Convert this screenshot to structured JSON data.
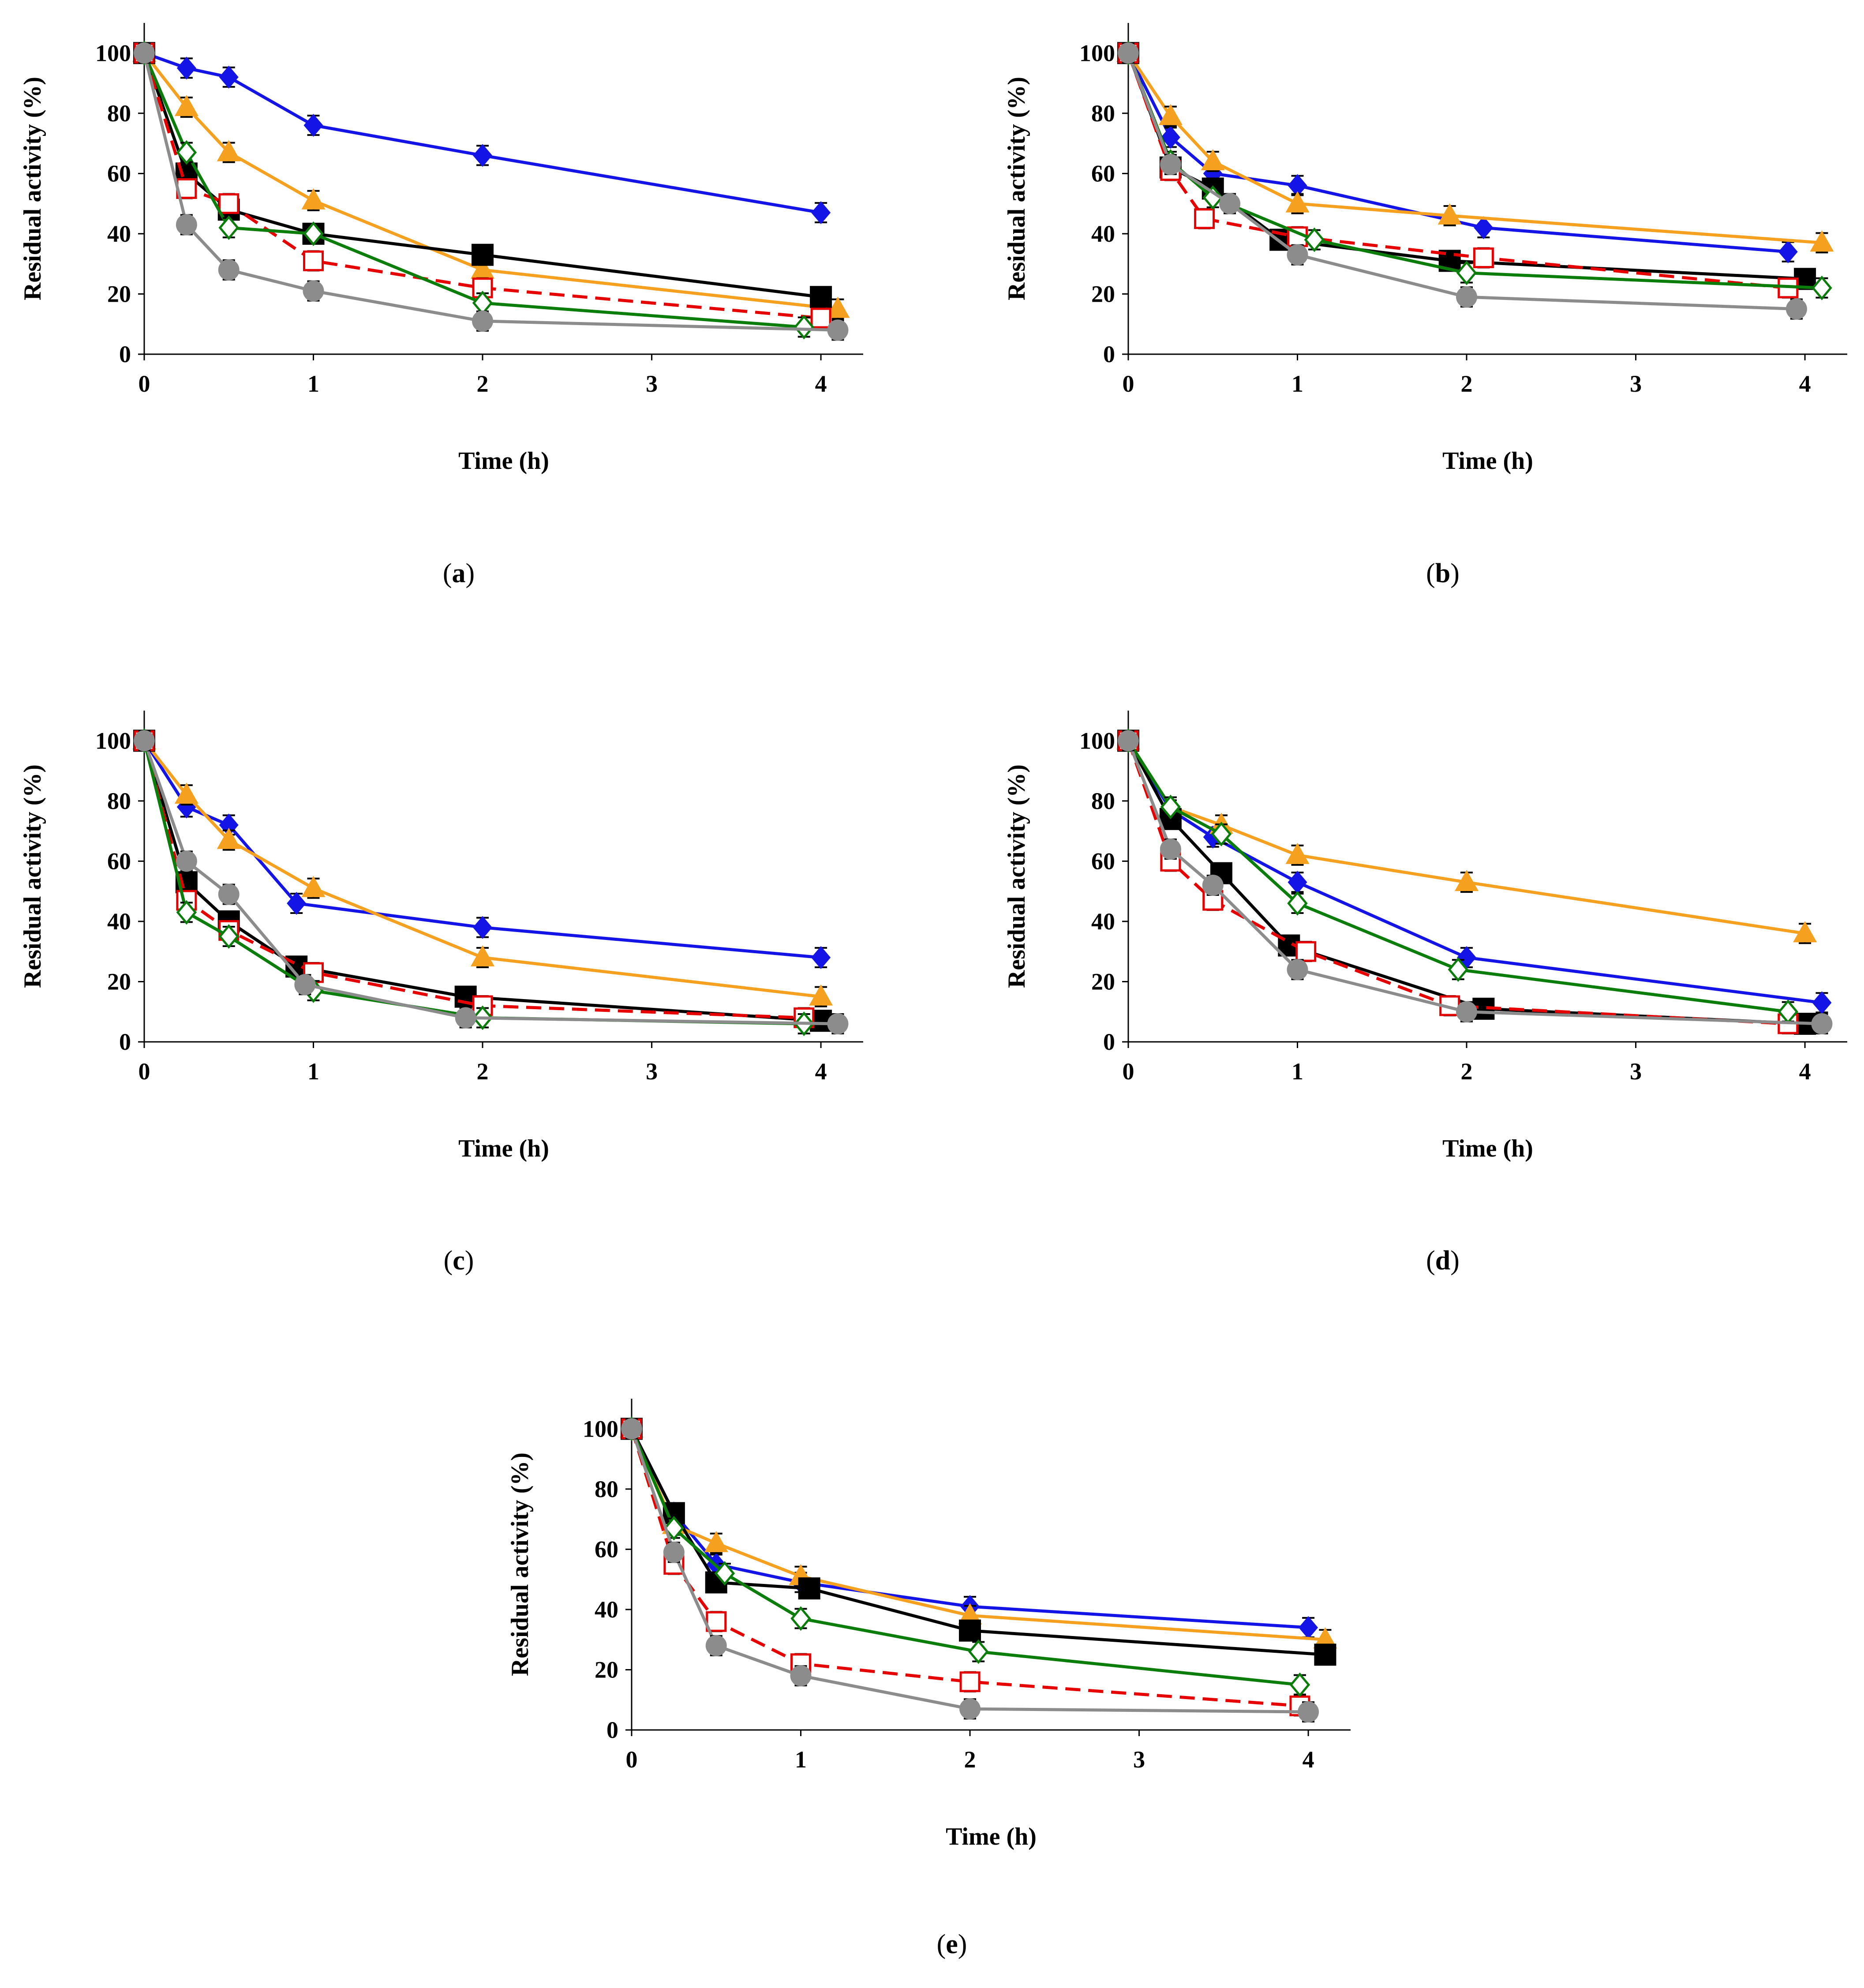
{
  "figure": {
    "caption_open": "(",
    "caption_close": ")"
  },
  "colors": {
    "blue": "#1414e6",
    "orange": "#f5a01e",
    "black": "#000000",
    "red": "#e60000",
    "green": "#0a7d0a",
    "gray": "#8c8c8c"
  },
  "chart_data": [
    {
      "panel": "a",
      "type": "line",
      "xlabel": "Time (h)",
      "ylabel": "Residual activity (%)",
      "xlim": [
        0,
        4.25
      ],
      "ylim": [
        0,
        110
      ],
      "xticks": [
        0,
        1,
        2,
        3,
        4
      ],
      "yticks": [
        0,
        20,
        40,
        60,
        80,
        100
      ],
      "series": [
        {
          "name": "blue-diamond",
          "color": "blue",
          "marker": "diamond-filled",
          "dash": false,
          "x": [
            0,
            0.25,
            0.5,
            1,
            2,
            4
          ],
          "y": [
            100,
            95,
            92,
            76,
            66,
            47
          ]
        },
        {
          "name": "orange-triangle",
          "color": "orange",
          "marker": "triangle",
          "dash": false,
          "x": [
            0,
            0.25,
            0.5,
            1,
            2,
            4.1
          ],
          "y": [
            100,
            82,
            67,
            51,
            28,
            15
          ]
        },
        {
          "name": "black-square",
          "color": "black",
          "marker": "square-filled",
          "dash": false,
          "x": [
            0,
            0.25,
            0.5,
            1,
            2,
            4
          ],
          "y": [
            100,
            60,
            48,
            40,
            33,
            19
          ]
        },
        {
          "name": "red-open-square",
          "color": "red",
          "marker": "square-open",
          "dash": true,
          "x": [
            0,
            0.25,
            0.5,
            1,
            2,
            4
          ],
          "y": [
            100,
            55,
            50,
            31,
            22,
            12
          ]
        },
        {
          "name": "green-open-diamond",
          "color": "green",
          "marker": "diamond-open",
          "dash": false,
          "x": [
            0,
            0.25,
            0.5,
            1,
            2,
            3.9
          ],
          "y": [
            100,
            67,
            42,
            40,
            17,
            9
          ]
        },
        {
          "name": "gray-circle",
          "color": "gray",
          "marker": "circle",
          "dash": false,
          "x": [
            0,
            0.25,
            0.5,
            1,
            2,
            4.1
          ],
          "y": [
            100,
            43,
            28,
            21,
            11,
            8
          ]
        }
      ]
    },
    {
      "panel": "b",
      "type": "line",
      "xlabel": "Time (h)",
      "ylabel": "Residual activity (%)",
      "xlim": [
        0,
        4.25
      ],
      "ylim": [
        0,
        110
      ],
      "xticks": [
        0,
        1,
        2,
        3,
        4
      ],
      "yticks": [
        0,
        20,
        40,
        60,
        80,
        100
      ],
      "series": [
        {
          "name": "blue-diamond",
          "color": "blue",
          "marker": "diamond-filled",
          "dash": false,
          "x": [
            0,
            0.25,
            0.5,
            1,
            2.1,
            3.9
          ],
          "y": [
            100,
            72,
            60,
            56,
            42,
            34
          ]
        },
        {
          "name": "orange-triangle",
          "color": "orange",
          "marker": "triangle",
          "dash": false,
          "x": [
            0,
            0.25,
            0.5,
            1,
            1.9,
            4.1
          ],
          "y": [
            100,
            79,
            64,
            50,
            46,
            37
          ]
        },
        {
          "name": "black-square",
          "color": "black",
          "marker": "square-filled",
          "dash": false,
          "x": [
            0,
            0.25,
            0.5,
            0.9,
            1.9,
            4
          ],
          "y": [
            100,
            62,
            55,
            38,
            31,
            25
          ]
        },
        {
          "name": "red-open-square",
          "color": "red",
          "marker": "square-open",
          "dash": true,
          "x": [
            0,
            0.25,
            0.45,
            1,
            2.1,
            3.9
          ],
          "y": [
            100,
            61,
            45,
            39,
            32,
            22
          ]
        },
        {
          "name": "green-open-diamond",
          "color": "green",
          "marker": "diamond-open",
          "dash": false,
          "x": [
            0,
            0.25,
            0.5,
            1.1,
            2,
            4.1
          ],
          "y": [
            100,
            64,
            52,
            38,
            27,
            22
          ]
        },
        {
          "name": "gray-circle",
          "color": "gray",
          "marker": "circle",
          "dash": false,
          "x": [
            0,
            0.25,
            0.6,
            1,
            2,
            3.95
          ],
          "y": [
            100,
            63,
            50,
            33,
            19,
            15
          ]
        }
      ]
    },
    {
      "panel": "c",
      "type": "line",
      "xlabel": "Time (h)",
      "ylabel": "Residual activity (%)",
      "xlim": [
        0,
        4.25
      ],
      "ylim": [
        0,
        110
      ],
      "xticks": [
        0,
        1,
        2,
        3,
        4
      ],
      "yticks": [
        0,
        20,
        40,
        60,
        80,
        100
      ],
      "series": [
        {
          "name": "blue-diamond",
          "color": "blue",
          "marker": "diamond-filled",
          "dash": false,
          "x": [
            0,
            0.25,
            0.5,
            0.9,
            2,
            4
          ],
          "y": [
            100,
            78,
            72,
            46,
            38,
            28
          ]
        },
        {
          "name": "orange-triangle",
          "color": "orange",
          "marker": "triangle",
          "dash": false,
          "x": [
            0,
            0.25,
            0.5,
            1,
            2,
            4
          ],
          "y": [
            100,
            82,
            67,
            51,
            28,
            15
          ]
        },
        {
          "name": "black-square",
          "color": "black",
          "marker": "square-filled",
          "dash": false,
          "x": [
            0,
            0.25,
            0.5,
            0.9,
            1.9,
            4
          ],
          "y": [
            100,
            53,
            40,
            25,
            15,
            7
          ]
        },
        {
          "name": "red-open-square",
          "color": "red",
          "marker": "square-open",
          "dash": true,
          "x": [
            0,
            0.25,
            0.5,
            1,
            2,
            3.9
          ],
          "y": [
            100,
            47,
            37,
            23,
            12,
            8
          ]
        },
        {
          "name": "green-open-diamond",
          "color": "green",
          "marker": "diamond-open",
          "dash": false,
          "x": [
            0,
            0.25,
            0.5,
            1,
            2,
            3.9
          ],
          "y": [
            100,
            43,
            35,
            17,
            8,
            6
          ]
        },
        {
          "name": "gray-circle",
          "color": "gray",
          "marker": "circle",
          "dash": false,
          "x": [
            0,
            0.25,
            0.5,
            0.95,
            1.9,
            4.1
          ],
          "y": [
            100,
            60,
            49,
            19,
            8,
            6
          ]
        }
      ]
    },
    {
      "panel": "d",
      "type": "line",
      "xlabel": "Time (h)",
      "ylabel": "Residual activity (%)",
      "xlim": [
        0,
        4.25
      ],
      "ylim": [
        0,
        110
      ],
      "xticks": [
        0,
        1,
        2,
        3,
        4
      ],
      "yticks": [
        0,
        20,
        40,
        60,
        80,
        100
      ],
      "series": [
        {
          "name": "blue-diamond",
          "color": "blue",
          "marker": "diamond-filled",
          "dash": false,
          "x": [
            0,
            0.25,
            0.5,
            1,
            2,
            4.1
          ],
          "y": [
            100,
            77,
            68,
            53,
            28,
            13
          ]
        },
        {
          "name": "orange-triangle",
          "color": "orange",
          "marker": "triangle",
          "dash": false,
          "x": [
            0,
            0.25,
            0.55,
            1,
            2,
            4
          ],
          "y": [
            100,
            78,
            72,
            62,
            53,
            36
          ]
        },
        {
          "name": "black-square",
          "color": "black",
          "marker": "square-filled",
          "dash": false,
          "x": [
            0,
            0.25,
            0.55,
            0.95,
            2.1,
            4
          ],
          "y": [
            100,
            74,
            56,
            32,
            11,
            6
          ]
        },
        {
          "name": "red-open-square",
          "color": "red",
          "marker": "square-open",
          "dash": true,
          "x": [
            0,
            0.25,
            0.5,
            1.05,
            1.9,
            3.9
          ],
          "y": [
            100,
            60,
            47,
            30,
            12,
            6
          ]
        },
        {
          "name": "green-open-diamond",
          "color": "green",
          "marker": "diamond-open",
          "dash": false,
          "x": [
            0,
            0.25,
            0.55,
            1,
            1.95,
            3.9
          ],
          "y": [
            100,
            78,
            69,
            46,
            24,
            10
          ]
        },
        {
          "name": "gray-circle",
          "color": "gray",
          "marker": "circle",
          "dash": false,
          "x": [
            0,
            0.25,
            0.5,
            1,
            2,
            4.1
          ],
          "y": [
            100,
            64,
            52,
            24,
            10,
            6
          ]
        }
      ]
    },
    {
      "panel": "e",
      "type": "line",
      "xlabel": "Time (h)",
      "ylabel": "Residual activity (%)",
      "xlim": [
        0,
        4.25
      ],
      "ylim": [
        0,
        110
      ],
      "xticks": [
        0,
        1,
        2,
        3,
        4
      ],
      "yticks": [
        0,
        20,
        40,
        60,
        80,
        100
      ],
      "series": [
        {
          "name": "blue-diamond",
          "color": "blue",
          "marker": "diamond-filled",
          "dash": false,
          "x": [
            0,
            0.25,
            0.5,
            1,
            2,
            4
          ],
          "y": [
            100,
            72,
            55,
            49,
            41,
            34
          ]
        },
        {
          "name": "orange-triangle",
          "color": "orange",
          "marker": "triangle",
          "dash": false,
          "x": [
            0,
            0.25,
            0.5,
            1,
            2,
            4.1
          ],
          "y": [
            100,
            68,
            62,
            51,
            38,
            30
          ]
        },
        {
          "name": "black-square",
          "color": "black",
          "marker": "square-filled",
          "dash": false,
          "x": [
            0,
            0.25,
            0.5,
            1.05,
            2,
            4.1
          ],
          "y": [
            100,
            72,
            49,
            47,
            33,
            25
          ]
        },
        {
          "name": "red-open-square",
          "color": "red",
          "marker": "square-open",
          "dash": true,
          "x": [
            0,
            0.25,
            0.5,
            1,
            2,
            3.95
          ],
          "y": [
            100,
            55,
            36,
            22,
            16,
            8
          ]
        },
        {
          "name": "green-open-diamond",
          "color": "green",
          "marker": "diamond-open",
          "dash": false,
          "x": [
            0,
            0.25,
            0.55,
            1,
            2.05,
            3.95
          ],
          "y": [
            100,
            67,
            52,
            37,
            26,
            15
          ]
        },
        {
          "name": "gray-circle",
          "color": "gray",
          "marker": "circle",
          "dash": false,
          "x": [
            0,
            0.25,
            0.5,
            1,
            2,
            4
          ],
          "y": [
            100,
            59,
            28,
            18,
            7,
            6
          ]
        }
      ]
    }
  ]
}
